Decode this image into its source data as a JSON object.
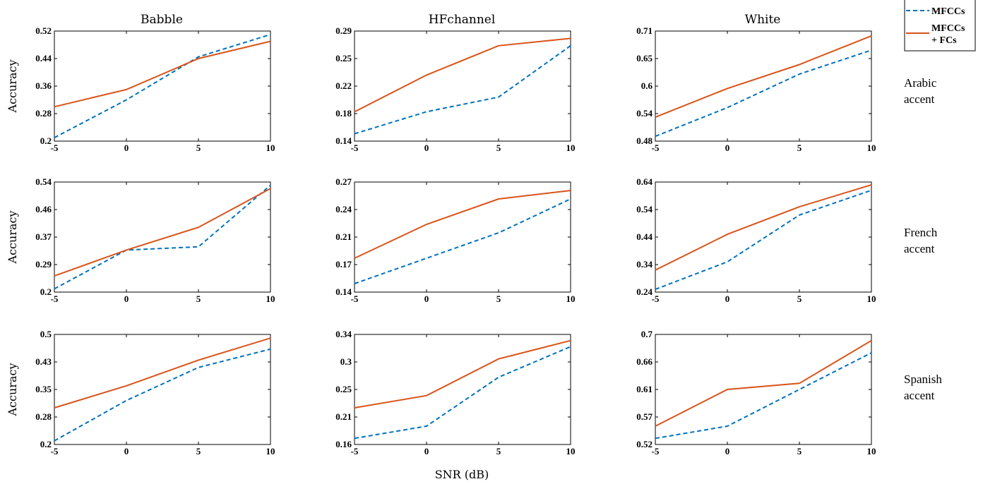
{
  "legend": {
    "entries": [
      "MFCCs",
      "MFCCs",
      "+ FCs"
    ],
    "colors": {
      "mfcc": "#0072BD",
      "fc": "#D95319"
    }
  },
  "column_titles": [
    "Babble",
    "HFchannel",
    "White"
  ],
  "row_labels": [
    [
      "Arabic",
      "accent"
    ],
    [
      "French",
      "accent"
    ],
    [
      "Spanish",
      "accent"
    ]
  ],
  "ylabel": "Accuracy",
  "xlabel": "SNR (dB)",
  "chart_data": [
    {
      "type": "line",
      "row": 0,
      "col": 0,
      "x": [
        -5,
        0,
        5,
        10
      ],
      "x_ticks": [
        "-5",
        "0",
        "5",
        "10"
      ],
      "ylim": [
        0.2,
        0.52
      ],
      "y_ticks": [
        "0.2",
        "0.28",
        "0.36",
        "0.44",
        "0.52"
      ],
      "series": [
        {
          "name": "MFCCs",
          "values": [
            0.21,
            0.32,
            0.445,
            0.51
          ]
        },
        {
          "name": "MFCCs + FCs",
          "values": [
            0.3,
            0.35,
            0.44,
            0.49
          ]
        }
      ]
    },
    {
      "type": "line",
      "row": 0,
      "col": 1,
      "x": [
        -5,
        0,
        5,
        10
      ],
      "x_ticks": [
        "-5",
        "0",
        "5",
        "10"
      ],
      "ylim": [
        0.14,
        0.29
      ],
      "y_ticks": [
        "0.14",
        "0.18",
        "0.22",
        "0.25",
        "0.29"
      ],
      "series": [
        {
          "name": "MFCCs",
          "values": [
            0.15,
            0.18,
            0.2,
            0.27
          ]
        },
        {
          "name": "MFCCs + FCs",
          "values": [
            0.18,
            0.23,
            0.27,
            0.28
          ]
        }
      ]
    },
    {
      "type": "line",
      "row": 0,
      "col": 2,
      "x": [
        -5,
        0,
        5,
        10
      ],
      "x_ticks": [
        "-5",
        "0",
        "5",
        "10"
      ],
      "ylim": [
        0.48,
        0.71
      ],
      "y_ticks": [
        "0.48",
        "0.54",
        "0.6",
        "0.65",
        "0.71"
      ],
      "series": [
        {
          "name": "MFCCs",
          "values": [
            0.49,
            0.55,
            0.62,
            0.67
          ]
        },
        {
          "name": "MFCCs + FCs",
          "values": [
            0.53,
            0.59,
            0.64,
            0.7
          ]
        }
      ]
    },
    {
      "type": "line",
      "row": 1,
      "col": 0,
      "x": [
        -5,
        0,
        5,
        10
      ],
      "x_ticks": [
        "-5",
        "0",
        "5",
        "10"
      ],
      "ylim": [
        0.2,
        0.54
      ],
      "y_ticks": [
        "0.2",
        "0.29",
        "0.37",
        "0.46",
        "0.54"
      ],
      "series": [
        {
          "name": "MFCCs",
          "values": [
            0.21,
            0.33,
            0.34,
            0.53
          ]
        },
        {
          "name": "MFCCs + FCs",
          "values": [
            0.25,
            0.33,
            0.4,
            0.52
          ]
        }
      ]
    },
    {
      "type": "line",
      "row": 1,
      "col": 1,
      "x": [
        -5,
        0,
        5,
        10
      ],
      "x_ticks": [
        "-5",
        "0",
        "5",
        "10"
      ],
      "ylim": [
        0.14,
        0.27
      ],
      "y_ticks": [
        "0.14",
        "0.17",
        "0.21",
        "0.24",
        "0.27"
      ],
      "series": [
        {
          "name": "MFCCs",
          "values": [
            0.15,
            0.18,
            0.21,
            0.25
          ]
        },
        {
          "name": "MFCCs + FCs",
          "values": [
            0.18,
            0.22,
            0.25,
            0.26
          ]
        }
      ]
    },
    {
      "type": "line",
      "row": 1,
      "col": 2,
      "x": [
        -5,
        0,
        5,
        10
      ],
      "x_ticks": [
        "-5",
        "0",
        "5",
        "10"
      ],
      "ylim": [
        0.24,
        0.64
      ],
      "y_ticks": [
        "0.24",
        "0.34",
        "0.44",
        "0.54",
        "0.64"
      ],
      "series": [
        {
          "name": "MFCCs",
          "values": [
            0.25,
            0.35,
            0.52,
            0.61
          ]
        },
        {
          "name": "MFCCs + FCs",
          "values": [
            0.32,
            0.45,
            0.55,
            0.63
          ]
        }
      ]
    },
    {
      "type": "line",
      "row": 2,
      "col": 0,
      "x": [
        -5,
        0,
        5,
        10
      ],
      "x_ticks": [
        "-5",
        "0",
        "5",
        "10"
      ],
      "ylim": [
        0.2,
        0.5
      ],
      "y_ticks": [
        "0.2",
        "0.28",
        "0.35",
        "0.43",
        "0.5"
      ],
      "series": [
        {
          "name": "MFCCs",
          "values": [
            0.21,
            0.32,
            0.41,
            0.46
          ]
        },
        {
          "name": "MFCCs + FCs",
          "values": [
            0.3,
            0.36,
            0.43,
            0.49
          ]
        }
      ]
    },
    {
      "type": "line",
      "row": 2,
      "col": 1,
      "x": [
        -5,
        0,
        5,
        10
      ],
      "x_ticks": [
        "-5",
        "0",
        "5",
        "10"
      ],
      "ylim": [
        0.16,
        0.34
      ],
      "y_ticks": [
        "0.16",
        "0.21",
        "0.25",
        "0.3",
        "0.34"
      ],
      "series": [
        {
          "name": "MFCCs",
          "values": [
            0.17,
            0.19,
            0.27,
            0.32
          ]
        },
        {
          "name": "MFCCs + FCs",
          "values": [
            0.22,
            0.24,
            0.3,
            0.33
          ]
        }
      ]
    },
    {
      "type": "line",
      "row": 2,
      "col": 2,
      "x": [
        -5,
        0,
        5,
        10
      ],
      "x_ticks": [
        "-5",
        "0",
        "5",
        "10"
      ],
      "ylim": [
        0.52,
        0.7
      ],
      "y_ticks": [
        "0.52",
        "0.57",
        "0.61",
        "0.66",
        "0.7"
      ],
      "series": [
        {
          "name": "MFCCs",
          "values": [
            0.53,
            0.55,
            0.61,
            0.67
          ]
        },
        {
          "name": "MFCCs + FCs",
          "values": [
            0.55,
            0.61,
            0.62,
            0.69
          ]
        }
      ]
    }
  ]
}
